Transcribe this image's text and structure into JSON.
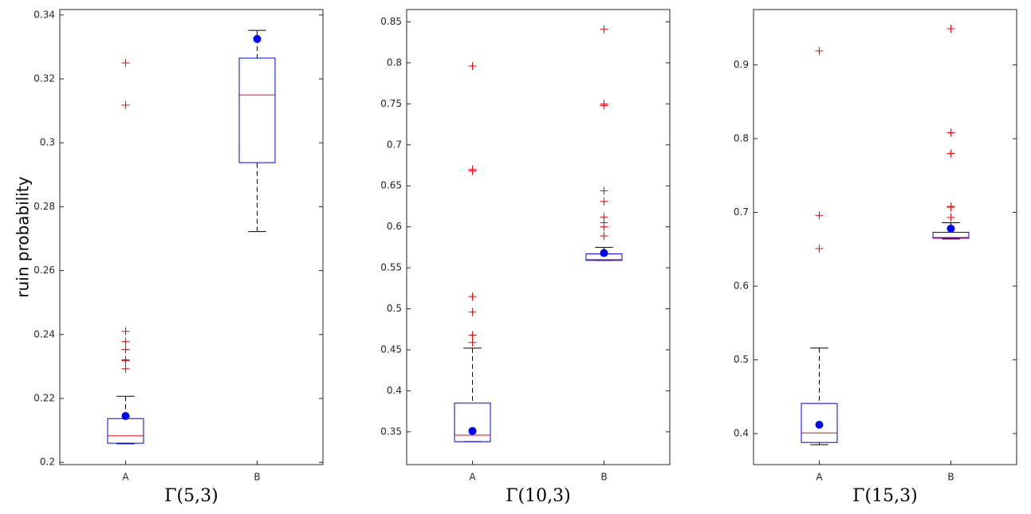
{
  "chart_data": [
    {
      "type": "box",
      "categories": [
        "A",
        "B"
      ],
      "xlabel": "Γ(5,3)",
      "ylabel": "ruin probability",
      "ylim": [
        0.1993,
        0.3417
      ],
      "yticks": [
        0.2,
        0.22,
        0.24,
        0.26,
        0.28,
        0.3,
        0.32,
        0.34
      ],
      "box_color": "#0000ff",
      "median_color": "#ff0000",
      "whisker_color": "#000000",
      "mean_color": "#0000ff",
      "outlier_color": "#ff0000",
      "boxes": [
        {
          "whisker_low": 0.2058,
          "q1": 0.206,
          "median": 0.2083,
          "q3": 0.2137,
          "whisker_high": 0.2207,
          "mean": 0.2145,
          "outliers": [
            0.325,
            0.3118,
            0.241,
            0.2378,
            0.2353,
            0.2321,
            0.2318,
            0.2293
          ]
        },
        {
          "whisker_low": 0.2722,
          "q1": 0.2938,
          "median": 0.315,
          "q3": 0.3265,
          "whisker_high": 0.3352,
          "mean": 0.3325,
          "outliers": []
        }
      ]
    },
    {
      "type": "box",
      "categories": [
        "A",
        "B"
      ],
      "xlabel": "Γ(10,3)",
      "ylim": [
        0.31,
        0.865
      ],
      "yticks": [
        0.35,
        0.4,
        0.45,
        0.5,
        0.55,
        0.6,
        0.65,
        0.7,
        0.75,
        0.8,
        0.85
      ],
      "box_color": "#0000ff",
      "median_color": "#ff0000",
      "whisker_color": "#000000",
      "mean_color": "#0000ff",
      "outlier_color": "#ff0000",
      "boxes": [
        {
          "whisker_low": 0.338,
          "q1": 0.338,
          "median": 0.346,
          "q3": 0.385,
          "whisker_high": 0.452,
          "mean": 0.351,
          "outliers": [
            0.796,
            0.67,
            0.668,
            0.515,
            0.496,
            0.468,
            0.459
          ]
        },
        {
          "whisker_low": 0.559,
          "q1": 0.559,
          "median": 0.56,
          "q3": 0.567,
          "whisker_high": 0.575,
          "mean": 0.568,
          "outliers": [
            0.841,
            0.75,
            0.748,
            0.644,
            0.631,
            0.612,
            0.605,
            0.6,
            0.589
          ]
        }
      ]
    },
    {
      "type": "box",
      "categories": [
        "A",
        "B"
      ],
      "xlabel": "Γ(15,3)",
      "ylim": [
        0.358,
        0.975
      ],
      "yticks": [
        0.4,
        0.5,
        0.6,
        0.7,
        0.8,
        0.9
      ],
      "box_color": "#0000ff",
      "median_color": "#ff0000",
      "whisker_color": "#000000",
      "mean_color": "#0000ff",
      "outlier_color": "#ff0000",
      "boxes": [
        {
          "whisker_low": 0.385,
          "q1": 0.388,
          "median": 0.401,
          "q3": 0.441,
          "whisker_high": 0.516,
          "mean": 0.412,
          "outliers": [
            0.919,
            0.696,
            0.651
          ]
        },
        {
          "whisker_low": 0.664,
          "q1": 0.665,
          "median": 0.666,
          "q3": 0.673,
          "whisker_high": 0.686,
          "mean": 0.678,
          "outliers": [
            0.949,
            0.808,
            0.78,
            0.708,
            0.707,
            0.693
          ]
        }
      ]
    }
  ]
}
